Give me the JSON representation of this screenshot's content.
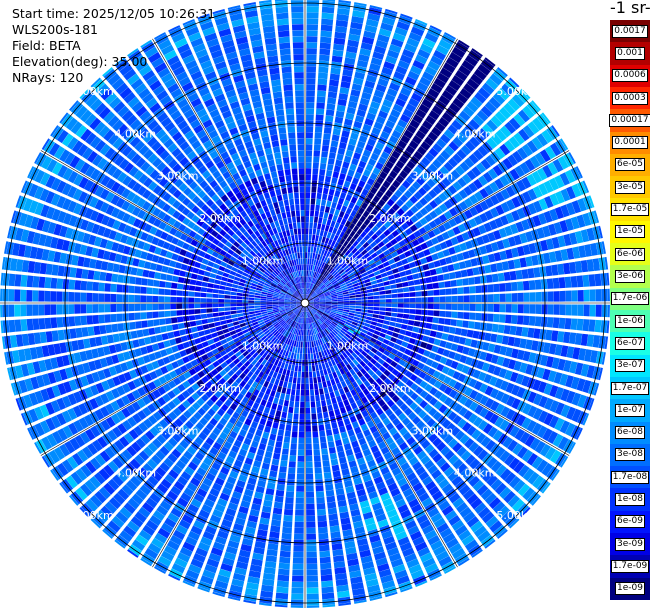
{
  "info": {
    "start_time": "Start time: 2025/12/05 10:26:31",
    "instrument": "WLS200s-181",
    "field": "Field: BETA",
    "elevation": "Elevation(deg): 35.00",
    "nrays": "NRays: 120"
  },
  "unit_title": "-1 sr-",
  "colorbar": {
    "labels": [
      "0.0017",
      "0.001",
      "0.0006",
      "0.0003",
      "0.00017",
      "0.0001",
      "6e-05",
      "3e-05",
      "1.7e-05",
      "1e-05",
      "6e-06",
      "3e-06",
      "1.7e-06",
      "1e-06",
      "6e-07",
      "3e-07",
      "1.7e-07",
      "1e-07",
      "6e-08",
      "3e-08",
      "1.7e-08",
      "1e-08",
      "6e-09",
      "3e-09",
      "1.7e-09",
      "1e-09"
    ],
    "colors": [
      "#7a0000",
      "#b30000",
      "#e00000",
      "#ff2600",
      "#ff5a00",
      "#ff8c00",
      "#ffae00",
      "#ffc800",
      "#ffe000",
      "#fff700",
      "#e6ff1a",
      "#b3ff4d",
      "#7fff80",
      "#4dffb3",
      "#1affe6",
      "#00e6ff",
      "#00c8ff",
      "#00aaff",
      "#008cff",
      "#006eff",
      "#0050ff",
      "#0032ff",
      "#0014ff",
      "#0000e6",
      "#0000b3",
      "#000080"
    ]
  },
  "range_labels": [
    "1.00km",
    "2.00km",
    "3.00km",
    "4.00km",
    "5.00km"
  ],
  "chart_data": {
    "type": "heatmap",
    "title": "",
    "field": "BETA",
    "elevation_deg": 35.0,
    "n_rays": 120,
    "max_range_km": 5.5,
    "range_rings_km": [
      1,
      2,
      3,
      4,
      5
    ],
    "color_scale": "log",
    "vmin": 1e-09,
    "vmax": 0.0017,
    "dominant_background_range": [
      1e-08,
      6e-08
    ],
    "highlights": [
      {
        "azimuth_deg": 35,
        "value": 1e-09,
        "note": "blocked sector, dark navy"
      },
      {
        "azimuth_deg": 50,
        "range_km": [
          4.0,
          5.2
        ],
        "value": 1.7e-07
      },
      {
        "azimuth_deg": 65,
        "range_km": [
          4.2,
          5.0
        ],
        "value": 1.7e-07
      },
      {
        "azimuth_deg": 160,
        "range_km": [
          3.4,
          4.2
        ],
        "value": 1.7e-07
      },
      {
        "azimuth_deg": 120,
        "range_km": [
          0.8,
          1.0
        ],
        "value": 1.7e-07
      }
    ]
  }
}
